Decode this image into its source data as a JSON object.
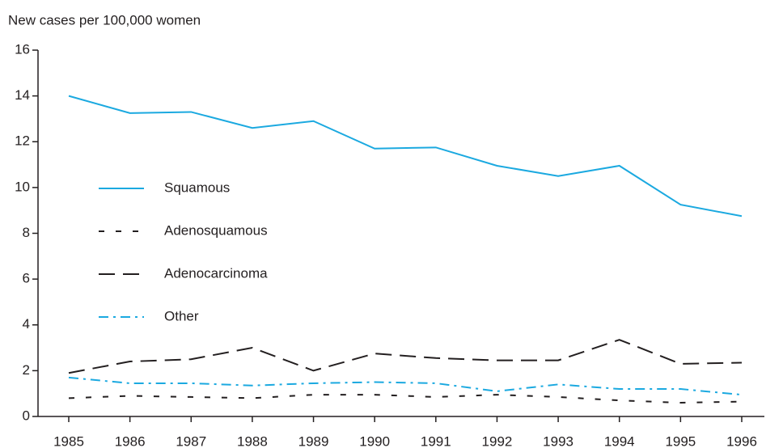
{
  "chart_data": {
    "type": "line",
    "y_axis_label": "New cases per 100,000 women",
    "categories": [
      "1985",
      "1986",
      "1987",
      "1988",
      "1989",
      "1990",
      "1991",
      "1992",
      "1993",
      "1994",
      "1995",
      "1996"
    ],
    "ylim": [
      0,
      16
    ],
    "yticks": [
      0,
      2,
      4,
      6,
      8,
      10,
      12,
      14,
      16
    ],
    "legend": "left",
    "series": [
      {
        "name": "Squamous",
        "color": "#1ba9e0",
        "dash": "solid",
        "values": [
          14.0,
          13.25,
          13.3,
          12.6,
          12.9,
          11.7,
          11.75,
          10.95,
          10.5,
          10.95,
          9.25,
          8.75
        ]
      },
      {
        "name": "Adenosquamous",
        "color": "#231f20",
        "dash": "short-dash",
        "values": [
          0.8,
          0.9,
          0.85,
          0.8,
          0.95,
          0.95,
          0.85,
          0.95,
          0.85,
          0.7,
          0.6,
          0.65
        ]
      },
      {
        "name": "Adenocarcinoma",
        "color": "#231f20",
        "dash": "long-dash",
        "values": [
          1.9,
          2.4,
          2.5,
          3.0,
          2.0,
          2.75,
          2.55,
          2.45,
          2.45,
          3.35,
          2.3,
          2.35
        ]
      },
      {
        "name": "Other",
        "color": "#1ba9e0",
        "dash": "dash-dot",
        "values": [
          1.7,
          1.45,
          1.45,
          1.35,
          1.45,
          1.5,
          1.45,
          1.1,
          1.4,
          1.2,
          1.2,
          0.95
        ]
      }
    ]
  }
}
